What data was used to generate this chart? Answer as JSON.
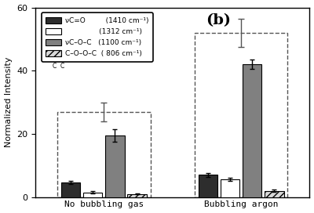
{
  "title": "(b)",
  "ylabel": "Normalized Intensity",
  "ylim": [
    0,
    60
  ],
  "yticks": [
    0,
    20,
    40,
    60
  ],
  "groups": [
    "No bubbling gas",
    "Bubbling argon"
  ],
  "series": [
    {
      "label": "νC=O         (1410 cm⁻¹)",
      "color": "#2d2d2d",
      "hatch": null,
      "values": [
        4.5,
        7.0
      ],
      "errors": [
        0.5,
        0.7
      ]
    },
    {
      "label": "               (1312 cm⁻¹)",
      "color": "#ffffff",
      "hatch": null,
      "values": [
        1.5,
        5.5
      ],
      "errors": [
        0.3,
        0.5
      ]
    },
    {
      "label": "νC–O–C   (1100 cm⁻¹)",
      "color": "#808080",
      "hatch": null,
      "values": [
        19.5,
        42.0
      ],
      "errors": [
        2.0,
        1.5
      ]
    },
    {
      "label": "C–O–O–C  ( 806 cm⁻¹)",
      "color": "#d8d8d8",
      "hatch": "////",
      "values": [
        1.0,
        2.0
      ],
      "errors": [
        0.2,
        0.3
      ]
    }
  ],
  "dashed_total": [
    27.0,
    52.0
  ],
  "dashed_errors": [
    3.0,
    4.5
  ],
  "bar_width": 0.07,
  "group_centers": [
    0.25,
    0.75
  ],
  "group_half_span": 0.17,
  "figsize": [
    4.0,
    2.72
  ],
  "dpi": 100,
  "background": "#ffffff",
  "edgecolor": "#000000"
}
